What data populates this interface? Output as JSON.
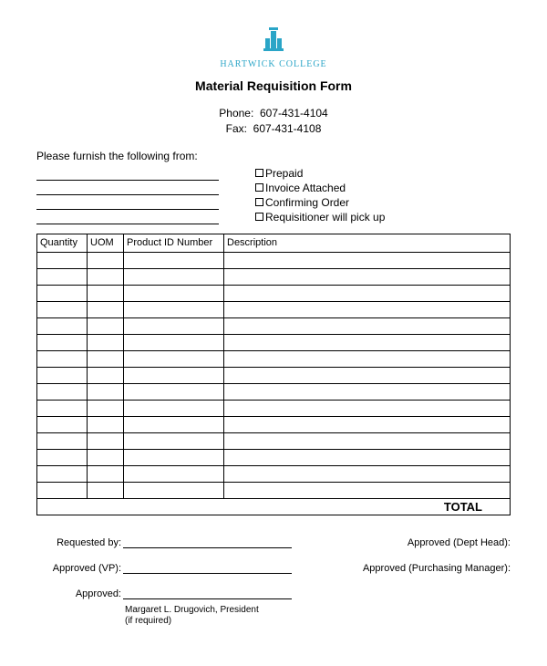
{
  "logo": {
    "text": "HARTWICK COLLEGE",
    "color": "#2aa5c7"
  },
  "title": "Material Requisition Form",
  "contact": {
    "phone_label": "Phone:",
    "phone": "607-431-4104",
    "fax_label": "Fax:",
    "fax": "607-431-4108"
  },
  "furnish_label": "Please furnish the following from:",
  "checkboxes": [
    "Prepaid",
    "Invoice Attached",
    "Confirming Order",
    "Requisitioner will pick up"
  ],
  "table": {
    "columns": [
      "Quantity",
      "UOM",
      "Product ID Number",
      "Description"
    ],
    "row_count": 15,
    "total_label": "TOTAL"
  },
  "signatures": {
    "left": [
      "Requested by:",
      "Approved (VP):",
      "Approved:"
    ],
    "right": [
      "Approved (Dept Head):",
      "Approved (Purchasing Manager):",
      ""
    ],
    "note_name": "Margaret L. Drugovich, President",
    "note_req": "(if required)"
  }
}
